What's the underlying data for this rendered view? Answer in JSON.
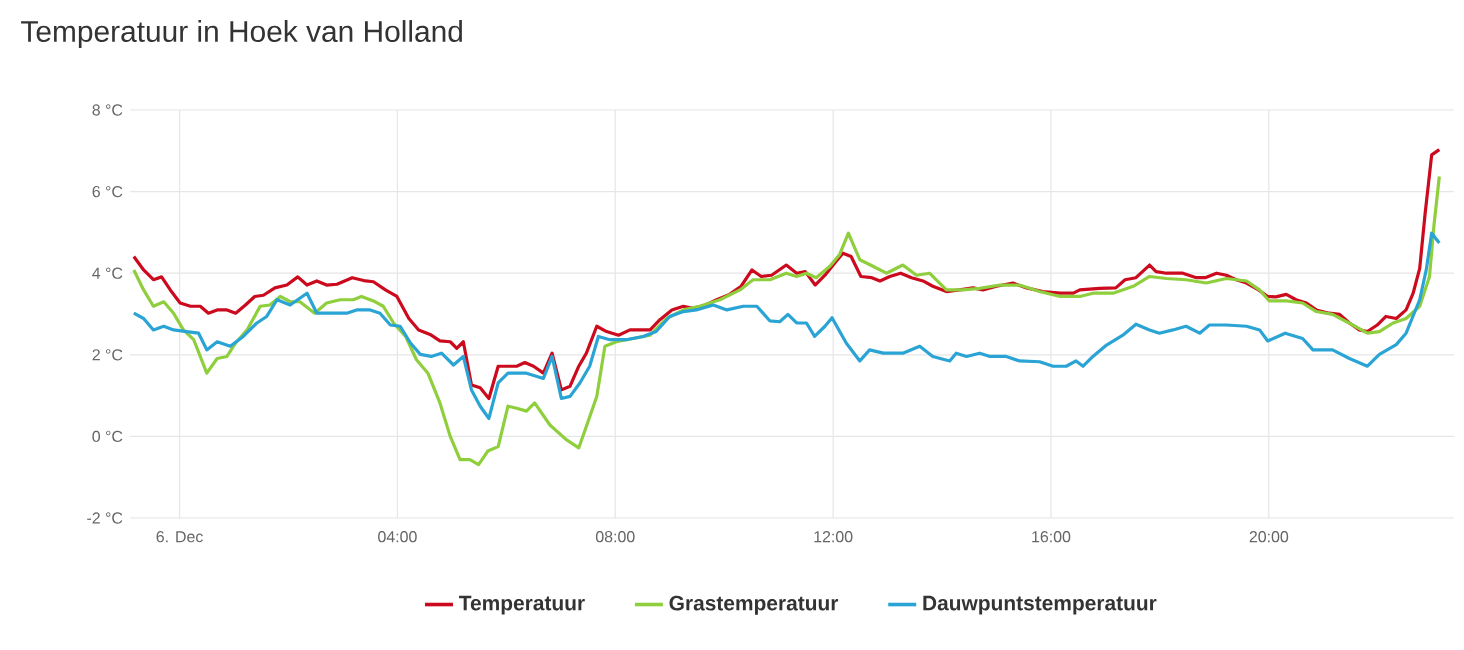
{
  "chart_data": {
    "type": "line",
    "title": "Temperatuur in Hoek van Holland",
    "xlim": [
      -0.91,
      23.4
    ],
    "ylim": [
      -2,
      8
    ],
    "xticks": [
      {
        "value": 0,
        "label": "6. Dec"
      },
      {
        "value": 4,
        "label": "04:00"
      },
      {
        "value": 8,
        "label": "08:00"
      },
      {
        "value": 12,
        "label": "12:00"
      },
      {
        "value": 16,
        "label": "16:00"
      },
      {
        "value": 20,
        "label": "20:00"
      }
    ],
    "yticks": [
      {
        "value": -2,
        "label": "-2 °C"
      },
      {
        "value": 0,
        "label": "0 °C"
      },
      {
        "value": 2,
        "label": "2 °C"
      },
      {
        "value": 4,
        "label": "4 °C"
      },
      {
        "value": 6,
        "label": "6 °C"
      },
      {
        "value": 8,
        "label": "8 °C"
      }
    ],
    "grid": true,
    "legend": "bottom",
    "marker": "none",
    "line_style": "solid",
    "series": [
      {
        "name": "Temperatuur",
        "color": "#cc0a1e",
        "x": [
          -0.84,
          -0.66,
          -0.48,
          -0.33,
          -0.17,
          0.01,
          0.2,
          0.38,
          0.53,
          0.69,
          0.87,
          1.03,
          1.21,
          1.38,
          1.54,
          1.75,
          1.97,
          2.17,
          2.34,
          2.52,
          2.7,
          2.89,
          3.17,
          3.38,
          3.56,
          3.78,
          3.99,
          4.21,
          4.39,
          4.6,
          4.78,
          4.97,
          5.09,
          5.21,
          5.36,
          5.52,
          5.68,
          5.85,
          6.03,
          6.19,
          6.34,
          6.5,
          6.68,
          6.84,
          7.01,
          7.17,
          7.33,
          7.47,
          7.66,
          7.84,
          8.06,
          8.27,
          8.64,
          8.82,
          9.04,
          9.25,
          9.43,
          9.66,
          9.86,
          10.1,
          10.31,
          10.51,
          10.68,
          10.87,
          11.14,
          11.33,
          11.49,
          11.67,
          11.85,
          12.03,
          12.18,
          12.33,
          12.51,
          12.71,
          12.86,
          13.04,
          13.24,
          13.44,
          13.65,
          13.83,
          14.08,
          14.32,
          14.57,
          14.75,
          15.0,
          15.3,
          15.55,
          15.85,
          16.17,
          16.41,
          16.53,
          16.89,
          17.19,
          17.36,
          17.56,
          17.81,
          17.93,
          18.12,
          18.42,
          18.67,
          18.83,
          19.04,
          19.22,
          19.4,
          19.59,
          19.81,
          19.98,
          20.13,
          20.32,
          20.5,
          20.69,
          20.87,
          21.11,
          21.3,
          21.48,
          21.66,
          21.81,
          21.99,
          22.15,
          22.34,
          22.52,
          22.65,
          22.77,
          22.87,
          22.99,
          23.13
        ],
        "values": [
          4.41,
          4.08,
          3.84,
          3.91,
          3.59,
          3.27,
          3.19,
          3.19,
          3.02,
          3.1,
          3.1,
          3.02,
          3.22,
          3.43,
          3.46,
          3.64,
          3.71,
          3.91,
          3.71,
          3.81,
          3.71,
          3.73,
          3.89,
          3.82,
          3.79,
          3.59,
          3.43,
          2.89,
          2.61,
          2.5,
          2.34,
          2.32,
          2.16,
          2.32,
          1.26,
          1.19,
          0.93,
          1.72,
          1.72,
          1.72,
          1.81,
          1.72,
          1.55,
          2.04,
          1.14,
          1.23,
          1.72,
          2.04,
          2.7,
          2.57,
          2.48,
          2.61,
          2.61,
          2.86,
          3.1,
          3.19,
          3.14,
          3.22,
          3.35,
          3.48,
          3.68,
          4.08,
          3.92,
          3.95,
          4.2,
          4.0,
          4.04,
          3.71,
          3.95,
          4.25,
          4.49,
          4.41,
          3.92,
          3.89,
          3.81,
          3.92,
          4.0,
          3.89,
          3.81,
          3.68,
          3.55,
          3.59,
          3.64,
          3.59,
          3.68,
          3.76,
          3.64,
          3.55,
          3.51,
          3.51,
          3.59,
          3.63,
          3.64,
          3.84,
          3.89,
          4.2,
          4.04,
          4.0,
          4.0,
          3.89,
          3.89,
          4.0,
          3.95,
          3.84,
          3.76,
          3.59,
          3.43,
          3.42,
          3.48,
          3.35,
          3.27,
          3.1,
          3.02,
          2.99,
          2.78,
          2.61,
          2.57,
          2.73,
          2.94,
          2.89,
          3.1,
          3.51,
          4.12,
          5.47,
          6.9,
          7.03
        ]
      },
      {
        "name": "Grastemperatuur",
        "color": "#8fce3c",
        "x": [
          -0.84,
          -0.66,
          -0.48,
          -0.29,
          -0.11,
          0.07,
          0.26,
          0.5,
          0.69,
          0.87,
          1.03,
          1.24,
          1.48,
          1.66,
          1.85,
          2.03,
          2.21,
          2.48,
          2.7,
          2.95,
          3.19,
          3.34,
          3.56,
          3.74,
          3.93,
          4.15,
          4.35,
          4.56,
          4.78,
          4.97,
          5.15,
          5.33,
          5.49,
          5.66,
          5.85,
          6.03,
          6.19,
          6.37,
          6.52,
          6.8,
          7.1,
          7.33,
          7.47,
          7.66,
          7.81,
          8.02,
          8.33,
          8.64,
          8.94,
          9.25,
          9.55,
          9.92,
          10.29,
          10.53,
          10.84,
          11.14,
          11.33,
          11.51,
          11.69,
          11.94,
          12.12,
          12.28,
          12.49,
          12.73,
          12.98,
          13.28,
          13.53,
          13.77,
          14.08,
          14.38,
          14.69,
          15.06,
          15.42,
          15.79,
          16.17,
          16.53,
          16.77,
          17.14,
          17.51,
          17.81,
          18.12,
          18.48,
          18.85,
          19.22,
          19.59,
          19.83,
          20.01,
          20.32,
          20.62,
          20.87,
          21.17,
          21.54,
          21.81,
          22.03,
          22.28,
          22.52,
          22.77,
          22.95,
          23.03,
          23.13
        ],
        "values": [
          4.08,
          3.59,
          3.19,
          3.3,
          3.02,
          2.61,
          2.37,
          1.55,
          1.91,
          1.96,
          2.29,
          2.61,
          3.19,
          3.22,
          3.43,
          3.3,
          3.3,
          3.02,
          3.27,
          3.35,
          3.35,
          3.43,
          3.32,
          3.19,
          2.78,
          2.45,
          1.88,
          1.55,
          0.82,
          0.0,
          -0.57,
          -0.57,
          -0.69,
          -0.36,
          -0.25,
          0.74,
          0.69,
          0.62,
          0.82,
          0.28,
          -0.08,
          -0.28,
          0.25,
          0.98,
          2.21,
          2.32,
          2.4,
          2.48,
          2.89,
          3.1,
          3.19,
          3.35,
          3.59,
          3.84,
          3.84,
          4.0,
          3.92,
          4.0,
          3.89,
          4.17,
          4.46,
          4.98,
          4.33,
          4.17,
          4.0,
          4.2,
          3.95,
          4.0,
          3.59,
          3.59,
          3.63,
          3.71,
          3.71,
          3.55,
          3.43,
          3.43,
          3.51,
          3.51,
          3.68,
          3.92,
          3.87,
          3.84,
          3.76,
          3.87,
          3.81,
          3.59,
          3.32,
          3.32,
          3.27,
          3.06,
          2.99,
          2.73,
          2.53,
          2.57,
          2.78,
          2.89,
          3.19,
          3.92,
          5.15,
          6.37
        ]
      },
      {
        "name": "Dauwpuntstemperatuur",
        "color": "#2aa4d4",
        "x": [
          -0.84,
          -0.66,
          -0.48,
          -0.29,
          -0.11,
          0.13,
          0.35,
          0.5,
          0.69,
          0.93,
          1.17,
          1.42,
          1.6,
          1.79,
          2.03,
          2.34,
          2.52,
          2.76,
          3.07,
          3.25,
          3.5,
          3.68,
          3.87,
          4.05,
          4.24,
          4.42,
          4.62,
          4.81,
          5.03,
          5.21,
          5.36,
          5.52,
          5.68,
          5.85,
          6.03,
          6.37,
          6.68,
          6.84,
          7.01,
          7.17,
          7.35,
          7.53,
          7.69,
          7.9,
          8.2,
          8.51,
          8.75,
          9.0,
          9.25,
          9.49,
          9.8,
          10.05,
          10.35,
          10.6,
          10.84,
          11.02,
          11.17,
          11.33,
          11.51,
          11.66,
          11.85,
          11.98,
          12.24,
          12.49,
          12.67,
          12.92,
          13.28,
          13.59,
          13.83,
          14.14,
          14.26,
          14.45,
          14.69,
          14.88,
          15.18,
          15.42,
          15.79,
          16.04,
          16.28,
          16.46,
          16.59,
          16.77,
          17.02,
          17.32,
          17.56,
          17.81,
          17.99,
          18.24,
          18.48,
          18.73,
          18.91,
          19.22,
          19.59,
          19.83,
          19.98,
          20.3,
          20.62,
          20.81,
          21.17,
          21.48,
          21.81,
          22.03,
          22.34,
          22.52,
          22.77,
          22.89,
          22.99,
          23.13
        ],
        "values": [
          3.02,
          2.89,
          2.61,
          2.7,
          2.61,
          2.57,
          2.53,
          2.12,
          2.32,
          2.21,
          2.45,
          2.78,
          2.94,
          3.35,
          3.22,
          3.51,
          3.02,
          3.02,
          3.02,
          3.1,
          3.1,
          3.02,
          2.73,
          2.7,
          2.29,
          2.01,
          1.96,
          2.04,
          1.75,
          1.96,
          1.14,
          0.74,
          0.44,
          1.31,
          1.55,
          1.55,
          1.42,
          1.96,
          0.93,
          0.98,
          1.31,
          1.72,
          2.45,
          2.37,
          2.37,
          2.45,
          2.57,
          2.94,
          3.06,
          3.1,
          3.22,
          3.1,
          3.19,
          3.19,
          2.83,
          2.81,
          2.99,
          2.78,
          2.78,
          2.45,
          2.7,
          2.91,
          2.29,
          1.85,
          2.12,
          2.04,
          2.04,
          2.21,
          1.96,
          1.85,
          2.04,
          1.96,
          2.04,
          1.96,
          1.96,
          1.85,
          1.83,
          1.72,
          1.72,
          1.85,
          1.72,
          1.96,
          2.24,
          2.48,
          2.75,
          2.61,
          2.53,
          2.61,
          2.7,
          2.53,
          2.73,
          2.73,
          2.7,
          2.61,
          2.34,
          2.53,
          2.4,
          2.12,
          2.12,
          1.91,
          1.72,
          2.01,
          2.25,
          2.53,
          3.35,
          4.08,
          4.98,
          4.74
        ]
      }
    ]
  }
}
